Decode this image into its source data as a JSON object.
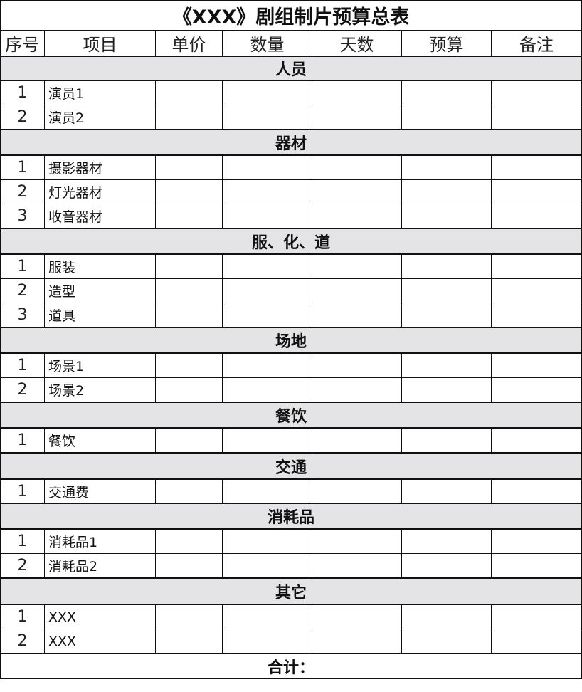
{
  "title": "《XXX》剧组制片预算总表",
  "headers": [
    "序号",
    "项目",
    "单价",
    "数量",
    "天数",
    "预算",
    "备注"
  ],
  "sections": [
    {
      "name": "人员",
      "items": [
        {
          "no": "1",
          "name": "演员1"
        },
        {
          "no": "2",
          "name": "演员2"
        }
      ]
    },
    {
      "name": "器材",
      "items": [
        {
          "no": "1",
          "name": "摄影器材"
        },
        {
          "no": "2",
          "name": "灯光器材"
        },
        {
          "no": "3",
          "name": "收音器材"
        }
      ]
    },
    {
      "name": "服、化、道",
      "items": [
        {
          "no": "1",
          "name": "服装"
        },
        {
          "no": "2",
          "name": "造型"
        },
        {
          "no": "3",
          "name": "道具"
        }
      ]
    },
    {
      "name": "场地",
      "items": [
        {
          "no": "1",
          "name": "场景1"
        },
        {
          "no": "2",
          "name": "场景2"
        }
      ]
    },
    {
      "name": "餐饮",
      "items": [
        {
          "no": "1",
          "name": "餐饮"
        }
      ]
    },
    {
      "name": "交通",
      "items": [
        {
          "no": "1",
          "name": "交通费"
        }
      ]
    },
    {
      "name": "消耗品",
      "items": [
        {
          "no": "1",
          "name": "消耗品1"
        },
        {
          "no": "2",
          "name": "消耗品2"
        }
      ]
    },
    {
      "name": "其它",
      "items": [
        {
          "no": "1",
          "name": "XXX"
        },
        {
          "no": "2",
          "name": "XXX"
        }
      ]
    }
  ],
  "total_label": "合计："
}
